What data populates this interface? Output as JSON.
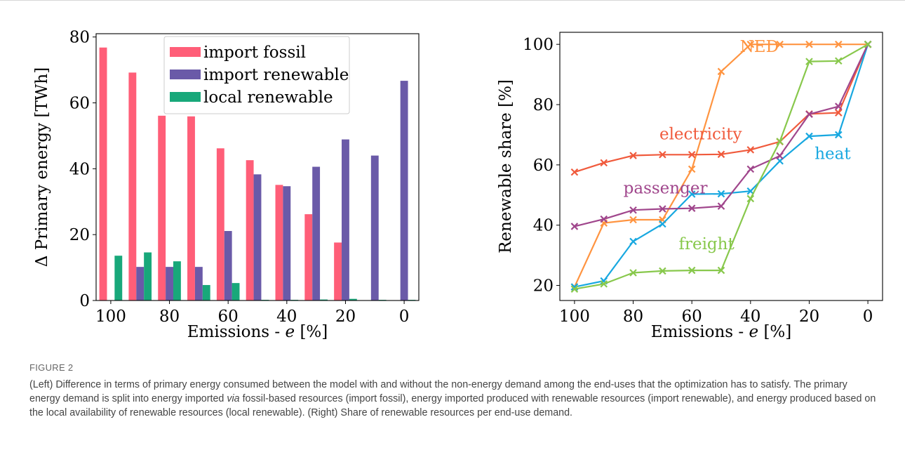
{
  "figure": {
    "label": "FIGURE 2",
    "caption_part1": "(Left) Difference in terms of primary energy consumed between the model with and without the non-energy demand among the end-uses that the optimization has to satisfy. The primary energy demand is split into energy imported ",
    "caption_italic": "via",
    "caption_part2": " fossil-based resources (import fossil), energy imported produced with renewable resources (import renewable), and energy produced based on the local availability of renewable resources (local renewable). (Right) Share of renewable resources per end-use demand."
  },
  "chart_data": [
    {
      "type": "bar",
      "xlabel_prefix": "Emissions - ",
      "xlabel_var": "e",
      "xlabel_suffix": " [%]",
      "ylabel": "Δ Primary energy [TWh]",
      "categories": [
        100,
        90,
        80,
        70,
        60,
        50,
        40,
        30,
        20,
        10,
        0
      ],
      "x_ticks": [
        100,
        80,
        60,
        40,
        20,
        0
      ],
      "y_ticks": [
        0,
        20,
        40,
        60,
        80
      ],
      "xlim": [
        105,
        -5
      ],
      "ylim": [
        0,
        81
      ],
      "legend_position": "top-center",
      "series": [
        {
          "name": "import fossil",
          "color": "#ff5e78",
          "values": [
            76.8,
            69.2,
            56.1,
            55.9,
            46.2,
            42.6,
            35.1,
            26.2,
            17.6,
            0,
            0
          ]
        },
        {
          "name": "import renewable",
          "color": "#6a5aa8",
          "values": [
            0,
            10.2,
            10.2,
            10.2,
            21.1,
            38.3,
            34.7,
            40.6,
            48.9,
            44.0,
            66.7
          ]
        },
        {
          "name": "local renewable",
          "color": "#18a87a",
          "values": [
            13.6,
            14.6,
            11.9,
            4.7,
            5.3,
            0.2,
            0.2,
            0.3,
            0.5,
            0.2,
            0.2
          ]
        }
      ]
    },
    {
      "type": "line",
      "xlabel_prefix": "Emissions - ",
      "xlabel_var": "e",
      "xlabel_suffix": " [%]",
      "ylabel": "Renewable share [%]",
      "x": [
        100,
        90,
        80,
        70,
        60,
        50,
        40,
        30,
        20,
        10,
        0
      ],
      "x_ticks": [
        100,
        80,
        60,
        40,
        20,
        0
      ],
      "y_ticks": [
        20,
        40,
        60,
        80,
        100
      ],
      "xlim": [
        105,
        -5
      ],
      "ylim": [
        15,
        104
      ],
      "series": [
        {
          "name": "NED",
          "color": "#ff9440",
          "values": [
            19.5,
            40.7,
            41.8,
            41.8,
            58.6,
            91.0,
            100,
            100,
            100,
            100,
            100
          ]
        },
        {
          "name": "electricity",
          "color": "#f05a3c",
          "values": [
            57.6,
            60.7,
            63.1,
            63.4,
            63.4,
            63.5,
            65.0,
            67.7,
            76.9,
            77.3,
            100
          ]
        },
        {
          "name": "heat",
          "color": "#18a8e0",
          "values": [
            19.5,
            21.5,
            34.6,
            40.4,
            50.3,
            50.4,
            51.3,
            61.3,
            69.5,
            70.0,
            100
          ]
        },
        {
          "name": "passenger",
          "color": "#a0468c",
          "values": [
            39.6,
            42.0,
            45.0,
            45.4,
            45.6,
            46.3,
            58.6,
            63.0,
            76.8,
            79.4,
            100
          ]
        },
        {
          "name": "freight",
          "color": "#88c84c",
          "values": [
            18.8,
            20.5,
            24.2,
            24.8,
            25.0,
            25.0,
            48.8,
            67.8,
            94.3,
            94.5,
            100
          ]
        }
      ]
    }
  ]
}
